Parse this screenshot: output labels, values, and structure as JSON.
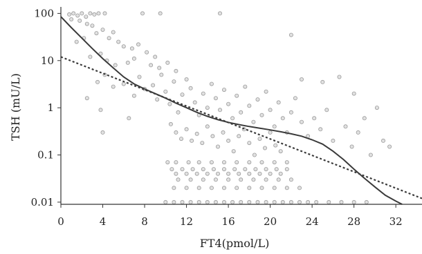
{
  "chart_data": {
    "type": "scatter",
    "title": "",
    "xlabel": "FT4(pmol/L)",
    "ylabel": "TSH (mU/L)",
    "x_scale": "linear",
    "y_scale": "log",
    "xlim": [
      0,
      34.5
    ],
    "ylim": [
      0.009,
      120
    ],
    "x_ticks": [
      0,
      4,
      8,
      12,
      16,
      20,
      24,
      28,
      32
    ],
    "x_tick_labels": [
      "0",
      "4",
      "8",
      "12",
      "16",
      "20",
      "24",
      "28",
      "32"
    ],
    "y_ticks": [
      0.01,
      0.1,
      1,
      10,
      100
    ],
    "y_tick_labels": [
      "0.01",
      "0.1",
      "1",
      "10",
      "100"
    ],
    "grid": false,
    "legend": "none",
    "point_color": "#9a9a9a",
    "curve_color": "#3a3a3a",
    "series": [
      {
        "style": "scatter",
        "points": [
          [
            0.8,
            95
          ],
          [
            1.2,
            100
          ],
          [
            1.6,
            90
          ],
          [
            2.0,
            100
          ],
          [
            2.4,
            85
          ],
          [
            2.8,
            100
          ],
          [
            3.2,
            95
          ],
          [
            3.6,
            100
          ],
          [
            4.2,
            100
          ],
          [
            7.8,
            100
          ],
          [
            9.5,
            100
          ],
          [
            15.2,
            100
          ],
          [
            1.0,
            75
          ],
          [
            1.8,
            70
          ],
          [
            2.5,
            60
          ],
          [
            3.0,
            55
          ],
          [
            4.0,
            45
          ],
          [
            5.0,
            40
          ],
          [
            3.4,
            38
          ],
          [
            2.2,
            30
          ],
          [
            1.5,
            25
          ],
          [
            4.6,
            30
          ],
          [
            5.5,
            25
          ],
          [
            6.0,
            20
          ],
          [
            6.8,
            18
          ],
          [
            7.4,
            22
          ],
          [
            8.2,
            15
          ],
          [
            9.0,
            12
          ],
          [
            3.8,
            14
          ],
          [
            4.4,
            10
          ],
          [
            5.2,
            8
          ],
          [
            2.8,
            12
          ],
          [
            6.4,
            9
          ],
          [
            7.0,
            11
          ],
          [
            8.6,
            8
          ],
          [
            9.4,
            7
          ],
          [
            10.2,
            9
          ],
          [
            11.0,
            6
          ],
          [
            22.0,
            35
          ],
          [
            4.2,
            5.0
          ],
          [
            3.5,
            3.5
          ],
          [
            5.0,
            2.8
          ],
          [
            6.0,
            3.2
          ],
          [
            2.5,
            1.6
          ],
          [
            3.8,
            0.9
          ],
          [
            4.0,
            0.3
          ],
          [
            6.5,
            0.6
          ],
          [
            7.0,
            1.8
          ],
          [
            7.5,
            4.5
          ],
          [
            8.0,
            2.5
          ],
          [
            8.8,
            3.0
          ],
          [
            9.2,
            1.5
          ],
          [
            9.6,
            5.0
          ],
          [
            10.0,
            2.2
          ],
          [
            10.4,
            1.2
          ],
          [
            10.8,
            3.6
          ],
          [
            11.2,
            0.8
          ],
          [
            11.6,
            1.9
          ],
          [
            12.0,
            4.0
          ],
          [
            12.4,
            2.6
          ],
          [
            12.8,
            1.3
          ],
          [
            13.2,
            0.7
          ],
          [
            13.6,
            2.0
          ],
          [
            14.0,
            1.0
          ],
          [
            14.4,
            3.2
          ],
          [
            14.8,
            1.6
          ],
          [
            15.2,
            0.9
          ],
          [
            15.6,
            2.4
          ],
          [
            16.0,
            1.2
          ],
          [
            16.4,
            0.6
          ],
          [
            16.8,
            1.8
          ],
          [
            17.2,
            0.8
          ],
          [
            17.6,
            2.8
          ],
          [
            18.0,
            1.1
          ],
          [
            18.4,
            0.5
          ],
          [
            18.8,
            1.5
          ],
          [
            19.2,
            0.7
          ],
          [
            19.6,
            2.2
          ],
          [
            20.0,
            0.9
          ],
          [
            20.4,
            0.4
          ],
          [
            20.8,
            1.3
          ],
          [
            21.2,
            0.6
          ],
          [
            21.6,
            0.3
          ],
          [
            22.0,
            0.8
          ],
          [
            22.4,
            1.6
          ],
          [
            23.0,
            0.5
          ],
          [
            23.6,
            0.25
          ],
          [
            24.2,
            0.6
          ],
          [
            24.8,
            0.35
          ],
          [
            25.4,
            0.9
          ],
          [
            26.0,
            0.2
          ],
          [
            26.6,
            4.5
          ],
          [
            27.2,
            0.4
          ],
          [
            27.8,
            0.15
          ],
          [
            28.4,
            0.3
          ],
          [
            29.0,
            0.6
          ],
          [
            29.6,
            0.1
          ],
          [
            30.2,
            1.0
          ],
          [
            30.8,
            0.2
          ],
          [
            31.4,
            0.15
          ],
          [
            28.0,
            2.0
          ],
          [
            25.0,
            3.5
          ],
          [
            23.0,
            4.0
          ],
          [
            10.5,
            0.45
          ],
          [
            11.0,
            0.3
          ],
          [
            11.5,
            0.22
          ],
          [
            12.0,
            0.35
          ],
          [
            12.5,
            0.2
          ],
          [
            13.0,
            0.28
          ],
          [
            13.5,
            0.18
          ],
          [
            14.0,
            0.4
          ],
          [
            14.5,
            0.25
          ],
          [
            15.0,
            0.15
          ],
          [
            15.5,
            0.3
          ],
          [
            16.0,
            0.2
          ],
          [
            16.5,
            0.12
          ],
          [
            17.0,
            0.25
          ],
          [
            17.5,
            0.35
          ],
          [
            18.0,
            0.18
          ],
          [
            18.5,
            0.1
          ],
          [
            19.0,
            0.22
          ],
          [
            19.5,
            0.14
          ],
          [
            20.0,
            0.3
          ],
          [
            20.5,
            0.16
          ],
          [
            21.0,
            0.12
          ],
          [
            10.2,
            0.07
          ],
          [
            11.0,
            0.07
          ],
          [
            12.2,
            0.07
          ],
          [
            13.2,
            0.07
          ],
          [
            14.4,
            0.07
          ],
          [
            15.6,
            0.07
          ],
          [
            16.8,
            0.07
          ],
          [
            18.0,
            0.07
          ],
          [
            19.2,
            0.07
          ],
          [
            20.4,
            0.07
          ],
          [
            21.6,
            0.07
          ],
          [
            10.6,
            0.05
          ],
          [
            11.6,
            0.05
          ],
          [
            12.6,
            0.05
          ],
          [
            13.6,
            0.05
          ],
          [
            14.6,
            0.05
          ],
          [
            15.6,
            0.05
          ],
          [
            16.6,
            0.05
          ],
          [
            17.6,
            0.05
          ],
          [
            18.6,
            0.05
          ],
          [
            19.6,
            0.05
          ],
          [
            20.6,
            0.05
          ],
          [
            21.6,
            0.05
          ],
          [
            11.0,
            0.04
          ],
          [
            12.0,
            0.04
          ],
          [
            13.0,
            0.04
          ],
          [
            14.0,
            0.04
          ],
          [
            15.0,
            0.04
          ],
          [
            16.0,
            0.04
          ],
          [
            17.0,
            0.04
          ],
          [
            18.0,
            0.04
          ],
          [
            19.0,
            0.04
          ],
          [
            20.0,
            0.04
          ],
          [
            21.0,
            0.04
          ],
          [
            11.2,
            0.03
          ],
          [
            12.4,
            0.03
          ],
          [
            13.6,
            0.03
          ],
          [
            14.8,
            0.03
          ],
          [
            16.0,
            0.03
          ],
          [
            17.2,
            0.03
          ],
          [
            18.4,
            0.03
          ],
          [
            19.6,
            0.03
          ],
          [
            20.8,
            0.03
          ],
          [
            22.0,
            0.03
          ],
          [
            10.8,
            0.02
          ],
          [
            12.0,
            0.02
          ],
          [
            13.2,
            0.02
          ],
          [
            14.4,
            0.02
          ],
          [
            15.6,
            0.02
          ],
          [
            16.8,
            0.02
          ],
          [
            18.0,
            0.02
          ],
          [
            19.2,
            0.02
          ],
          [
            20.4,
            0.02
          ],
          [
            21.6,
            0.02
          ],
          [
            22.8,
            0.02
          ],
          [
            10.0,
            0.01
          ],
          [
            10.8,
            0.01
          ],
          [
            11.6,
            0.01
          ],
          [
            12.4,
            0.01
          ],
          [
            13.2,
            0.01
          ],
          [
            14.0,
            0.01
          ],
          [
            14.8,
            0.01
          ],
          [
            15.6,
            0.01
          ],
          [
            16.4,
            0.01
          ],
          [
            17.2,
            0.01
          ],
          [
            18.0,
            0.01
          ],
          [
            18.8,
            0.01
          ],
          [
            19.6,
            0.01
          ],
          [
            20.4,
            0.01
          ],
          [
            21.2,
            0.01
          ],
          [
            22.0,
            0.01
          ],
          [
            22.8,
            0.01
          ],
          [
            23.6,
            0.01
          ],
          [
            24.4,
            0.01
          ],
          [
            25.6,
            0.01
          ],
          [
            26.8,
            0.01
          ],
          [
            28.0,
            0.01
          ],
          [
            29.2,
            0.01
          ]
        ]
      },
      {
        "style": "solid-curve",
        "points": [
          [
            0,
            85
          ],
          [
            1,
            50
          ],
          [
            2,
            30
          ],
          [
            3,
            18
          ],
          [
            4,
            11
          ],
          [
            5,
            7
          ],
          [
            6,
            4.5
          ],
          [
            7,
            3.2
          ],
          [
            8,
            2.5
          ],
          [
            9,
            2.0
          ],
          [
            10,
            1.6
          ],
          [
            11,
            1.25
          ],
          [
            12,
            1.0
          ],
          [
            13,
            0.8
          ],
          [
            14,
            0.66
          ],
          [
            15,
            0.56
          ],
          [
            16,
            0.49
          ],
          [
            17,
            0.44
          ],
          [
            18,
            0.4
          ],
          [
            19,
            0.37
          ],
          [
            20,
            0.34
          ],
          [
            21,
            0.31
          ],
          [
            22,
            0.28
          ],
          [
            23,
            0.25
          ],
          [
            24,
            0.21
          ],
          [
            25,
            0.17
          ],
          [
            26,
            0.12
          ],
          [
            27,
            0.08
          ],
          [
            28,
            0.05
          ],
          [
            29,
            0.032
          ],
          [
            30,
            0.021
          ],
          [
            31,
            0.014
          ],
          [
            32,
            0.0105
          ],
          [
            32.6,
            0.009
          ]
        ]
      },
      {
        "style": "dashed-line",
        "points": [
          [
            0,
            12
          ],
          [
            34.5,
            0.012
          ]
        ]
      }
    ]
  }
}
